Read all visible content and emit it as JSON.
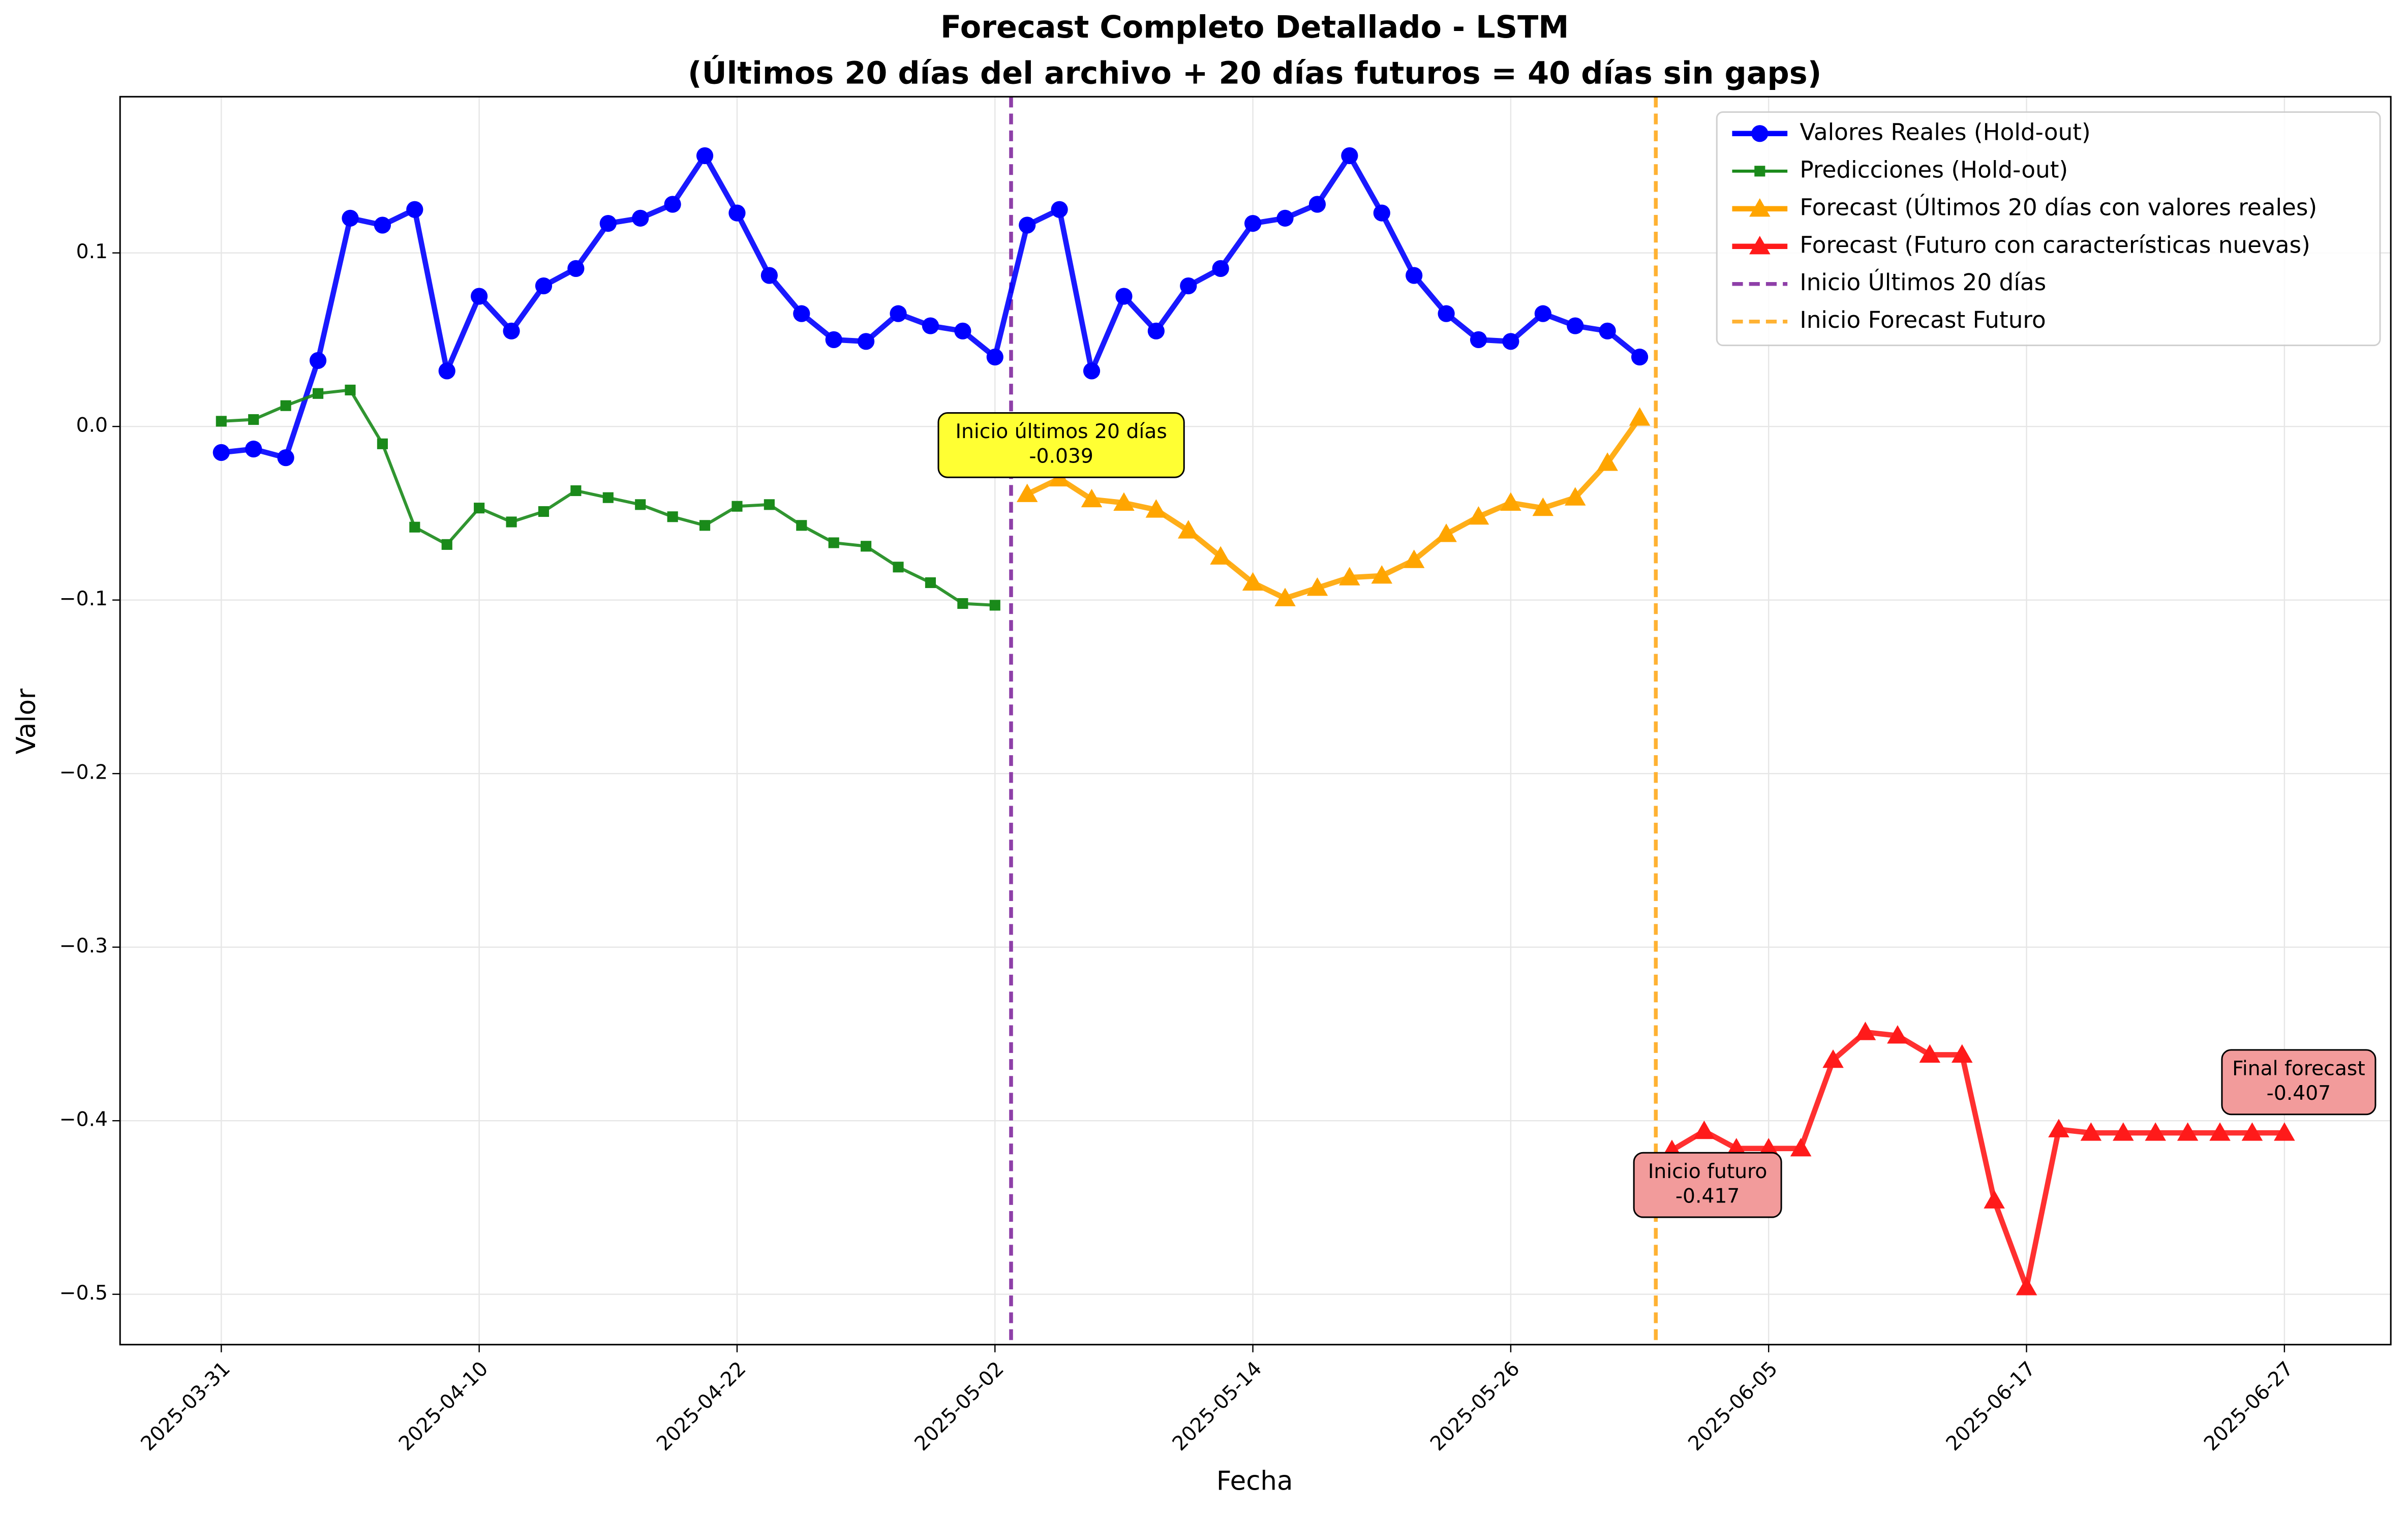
{
  "chart_data": {
    "type": "line",
    "title": "Forecast Completo Detallado - LSTM",
    "subtitle": "(Últimos 20 días del archivo + 20 días futuros = 40 días sin gaps)",
    "x_label": "Fecha",
    "y_label": "Valor",
    "categories": [
      "2025-03-31",
      null,
      null,
      null,
      null,
      null,
      null,
      null,
      "2025-04-10",
      null,
      null,
      null,
      null,
      null,
      null,
      null,
      "2025-04-22",
      null,
      null,
      null,
      null,
      null,
      null,
      null,
      "2025-05-02",
      null,
      null,
      null,
      null,
      null,
      null,
      null,
      "2025-05-14",
      null,
      null,
      null,
      null,
      null,
      null,
      null,
      "2025-05-26",
      null,
      null,
      null,
      null,
      null,
      null,
      null,
      "2025-06-05",
      null,
      null,
      null,
      null,
      null,
      null,
      null,
      "2025-06-17",
      null,
      null,
      null,
      null,
      null,
      null,
      null,
      "2025-06-27"
    ],
    "xlim": [
      -3.14,
      67.3
    ],
    "ylim": [
      -0.529,
      0.19
    ],
    "yticks": [
      {
        "value": -0.5,
        "label": "−0.5"
      },
      {
        "value": -0.4,
        "label": "−0.4"
      },
      {
        "value": -0.3,
        "label": "−0.3"
      },
      {
        "value": -0.2,
        "label": "−0.2"
      },
      {
        "value": -0.1,
        "label": "−0.1"
      },
      {
        "value": 0,
        "label": "0.0"
      },
      0.1
    ],
    "grid": true,
    "legend": "upper right",
    "series": [
      {
        "name": "Valores Reales (Hold-out)",
        "color": "#0000ff",
        "marker": "circle",
        "width": 3.5,
        "values": [
          -0.015,
          -0.013,
          -0.018,
          0.038,
          0.12,
          0.116,
          0.125,
          0.032,
          0.075,
          0.055,
          0.081,
          0.091,
          0.117,
          0.12,
          0.128,
          0.156,
          0.123,
          0.087,
          0.065,
          0.05,
          0.049,
          0.065,
          0.058,
          0.055,
          0.04,
          0.116,
          0.125,
          0.032,
          0.075,
          0.055,
          0.081,
          0.091,
          0.117,
          0.12,
          0.128,
          0.156,
          0.123,
          0.087,
          0.065,
          0.05,
          0.049,
          0.065,
          0.058,
          0.055,
          0.04,
          null,
          null,
          null,
          null,
          null,
          null,
          null,
          null,
          null,
          null,
          null,
          null,
          null,
          null,
          null,
          null,
          null,
          null,
          null,
          null
        ]
      },
      {
        "name": "Predicciones (Hold-out)",
        "color": "#1a8a1a",
        "marker": "square",
        "width": 2,
        "values": [
          0.003,
          0.004,
          0.012,
          0.019,
          0.021,
          -0.01,
          -0.058,
          -0.068,
          -0.047,
          -0.055,
          -0.049,
          -0.037,
          -0.041,
          -0.045,
          -0.052,
          -0.057,
          -0.046,
          -0.045,
          -0.057,
          -0.067,
          -0.069,
          -0.081,
          -0.09,
          -0.102,
          -0.103,
          null,
          null,
          null,
          null,
          null,
          null,
          null,
          null,
          null,
          null,
          null,
          null,
          null,
          null,
          null,
          null,
          null,
          null,
          null,
          null,
          null,
          null,
          null,
          null,
          null,
          null,
          null,
          null,
          null,
          null,
          null,
          null,
          null,
          null,
          null,
          null,
          null,
          null,
          null,
          null
        ]
      },
      {
        "name": "Forecast (Últimos 20 días con valores reales)",
        "color": "#ffa500",
        "marker": "triangle",
        "width": 3.5,
        "values": [
          null,
          null,
          null,
          null,
          null,
          null,
          null,
          null,
          null,
          null,
          null,
          null,
          null,
          null,
          null,
          null,
          null,
          null,
          null,
          null,
          null,
          null,
          null,
          null,
          null,
          -0.039,
          -0.03,
          -0.042,
          -0.044,
          -0.048,
          -0.06,
          -0.075,
          -0.09,
          -0.099,
          -0.093,
          -0.087,
          -0.086,
          -0.077,
          -0.062,
          -0.052,
          -0.044,
          -0.047,
          -0.041,
          -0.021,
          0.005,
          null,
          null,
          null,
          null,
          null,
          null,
          null,
          null,
          null,
          null,
          null,
          null,
          null,
          null,
          null,
          null,
          null,
          null,
          null,
          null
        ]
      },
      {
        "name": "Forecast (Futuro con características nuevas)",
        "color": "#ff1a1a",
        "marker": "triangle",
        "width": 3.5,
        "values": [
          null,
          null,
          null,
          null,
          null,
          null,
          null,
          null,
          null,
          null,
          null,
          null,
          null,
          null,
          null,
          null,
          null,
          null,
          null,
          null,
          null,
          null,
          null,
          null,
          null,
          null,
          null,
          null,
          null,
          null,
          null,
          null,
          null,
          null,
          null,
          null,
          null,
          null,
          null,
          null,
          null,
          null,
          null,
          null,
          null,
          -0.417,
          -0.406,
          -0.416,
          -0.416,
          -0.416,
          -0.365,
          -0.349,
          -0.351,
          -0.362,
          -0.362,
          -0.446,
          -0.496,
          -0.405,
          -0.407,
          -0.407,
          -0.407,
          -0.407,
          -0.407,
          -0.407,
          -0.407
        ]
      }
    ],
    "vlines": [
      {
        "name": "Inicio Últimos 20 días",
        "x": 24.5,
        "color": "#8e3fa8"
      },
      {
        "name": "Inicio Forecast Futuro",
        "x": 44.5,
        "color": "#ffb233"
      }
    ],
    "annotations": [
      {
        "text": "Inicio últimos 20 días",
        "label": "-0.039",
        "color": "#ffff33"
      },
      {
        "text": "Inicio futuro",
        "label": "-0.417",
        "color": "#f29b9b"
      },
      {
        "text": "Final forecast",
        "label": "-0.407",
        "color": "#f29b9b"
      }
    ]
  }
}
